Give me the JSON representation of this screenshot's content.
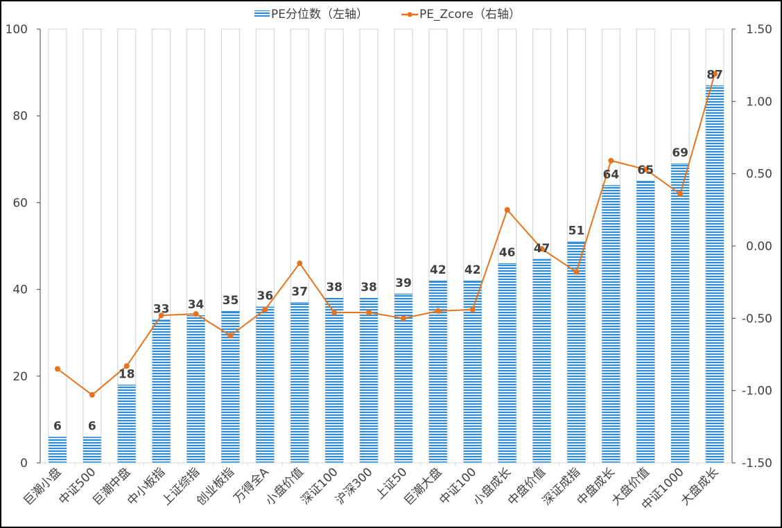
{
  "chart_data": {
    "type": "bar+line",
    "legend": {
      "position": "top",
      "entries": [
        "PE分位数（左轴）",
        "PE_Zcore（右轴）"
      ]
    },
    "categories": [
      "巨潮小盘",
      "中证500",
      "巨潮中盘",
      "中小板指",
      "上证综指",
      "创业板指",
      "万得全A",
      "小盘价值",
      "深证100",
      "沪深300",
      "上证50",
      "巨潮大盘",
      "中证100",
      "小盘成长",
      "中盘价值",
      "深证成指",
      "中盘成长",
      "大盘价值",
      "中证1000",
      "大盘成长"
    ],
    "series": [
      {
        "name": "PE分位数（左轴）",
        "type": "bar",
        "axis": "left",
        "color": "#2e8bd6",
        "values": [
          6,
          6,
          18,
          33,
          34,
          35,
          36,
          37,
          38,
          38,
          39,
          42,
          42,
          46,
          47,
          51,
          64,
          65,
          69,
          87
        ]
      },
      {
        "name": "PE_Zcore（右轴）",
        "type": "line",
        "axis": "right",
        "color": "#e8731a",
        "values": [
          -0.85,
          -1.03,
          -0.83,
          -0.48,
          -0.47,
          -0.62,
          -0.44,
          -0.12,
          -0.46,
          -0.46,
          -0.5,
          -0.45,
          -0.44,
          0.25,
          -0.02,
          -0.18,
          0.59,
          0.53,
          0.36,
          1.19
        ]
      }
    ],
    "left_axis": {
      "ylim": [
        0,
        100
      ],
      "ticks": [
        "0",
        "20",
        "40",
        "60",
        "80",
        "100"
      ]
    },
    "right_axis": {
      "ylim": [
        -1.5,
        1.5
      ],
      "ticks": [
        "-1.50",
        "-1.00",
        "-0.50",
        "0.00",
        "0.50",
        "1.00",
        "1.50"
      ]
    },
    "background_bar_value": 100,
    "grid": false
  }
}
